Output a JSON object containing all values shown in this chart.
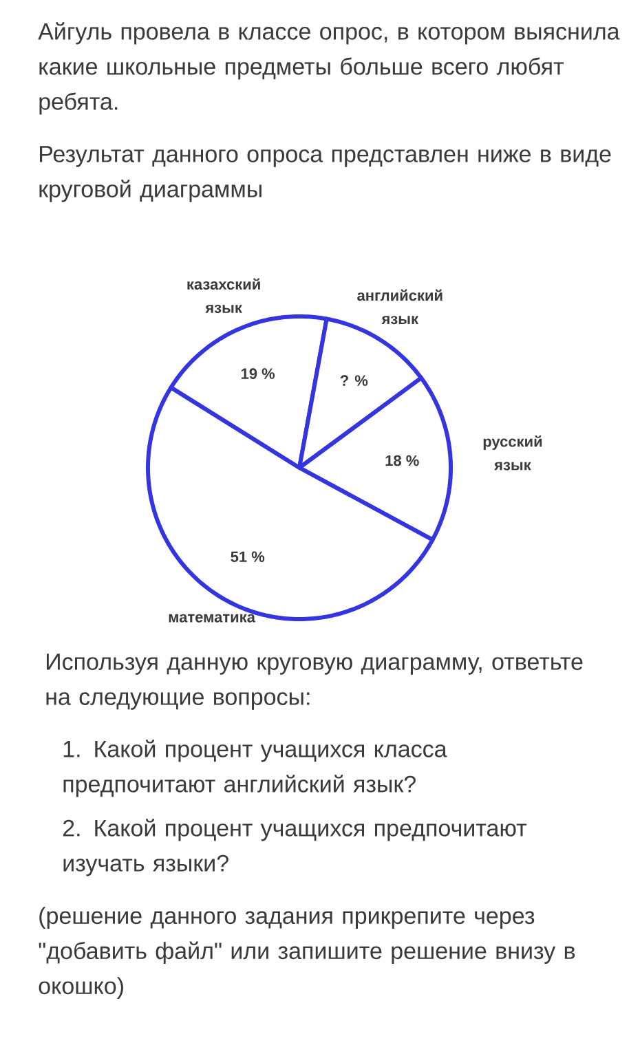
{
  "chart_data": {
    "type": "pie",
    "title": "Айгуль провела в классе опрос, в котором выяснила какие школьные предметы больше всего любят ребята.",
    "subtitle": "Результат данного опроса представлен ниже в виде круговой диаграммы",
    "categories": [
      "казахский язык",
      "английский язык",
      "русский язык",
      "математика"
    ],
    "values": [
      19,
      12,
      18,
      51
    ],
    "value_labels": [
      "19 %",
      "? %",
      "18 %",
      "51 %"
    ],
    "colors": [
      "#ffffff",
      "#ffffff",
      "#ffffff",
      "#ffffff"
    ],
    "annotations": [
      "Используя данную круговую диаграмму, ответьте на следующие вопросы:",
      "1. Какой процент учащихся класса предпочитают английский язык?",
      "2. Какой процент учащихся предпочитают изучать языки?",
      "(решение данного задания прикрепите через \"добавить файл\" или запишите решение внизу в окошко)"
    ]
  }
}
